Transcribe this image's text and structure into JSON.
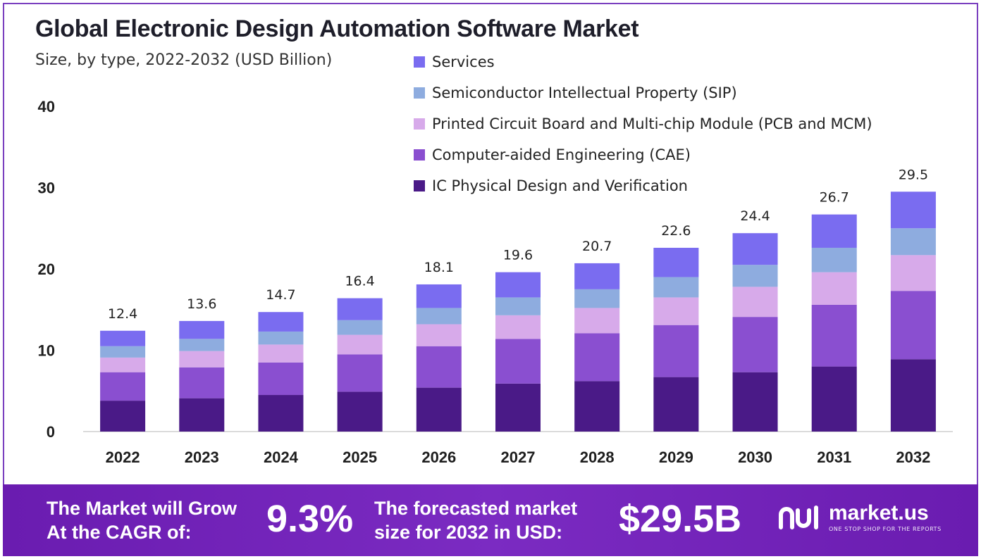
{
  "header": {
    "title": "Global Electronic Design Automation Software Market",
    "subtitle": "Size, by type, 2022-2032 (USD Billion)"
  },
  "chart_data": {
    "type": "bar",
    "stacked": true,
    "categories": [
      "2022",
      "2023",
      "2024",
      "2025",
      "2026",
      "2027",
      "2028",
      "2029",
      "2030",
      "2031",
      "2032"
    ],
    "totals": [
      "12.4",
      "13.6",
      "14.7",
      "16.4",
      "18.1",
      "19.6",
      "20.7",
      "22.6",
      "24.4",
      "26.7",
      "29.5"
    ],
    "series": [
      {
        "name": "IC Physical Design and Verification",
        "color": "#4a1a87",
        "values": [
          3.8,
          4.1,
          4.5,
          4.9,
          5.4,
          5.9,
          6.2,
          6.7,
          7.3,
          8.0,
          8.9
        ]
      },
      {
        "name": "Computer-aided Engineering (CAE)",
        "color": "#8a4fd0",
        "values": [
          3.5,
          3.8,
          4.0,
          4.6,
          5.1,
          5.5,
          5.9,
          6.4,
          6.8,
          7.6,
          8.4
        ]
      },
      {
        "name": "Printed Circuit Board and Multi-chip Module (PCB and MCM)",
        "color": "#d7aaea",
        "values": [
          1.8,
          2.0,
          2.2,
          2.4,
          2.7,
          2.9,
          3.1,
          3.4,
          3.7,
          4.0,
          4.4
        ]
      },
      {
        "name": "Semiconductor Intellectual Property (SIP)",
        "color": "#8eacdf",
        "values": [
          1.4,
          1.5,
          1.6,
          1.8,
          2.0,
          2.2,
          2.3,
          2.5,
          2.7,
          3.0,
          3.3
        ]
      },
      {
        "name": "Services",
        "color": "#7a6cf0",
        "values": [
          1.9,
          2.2,
          2.4,
          2.7,
          2.9,
          3.1,
          3.2,
          3.6,
          3.9,
          4.1,
          4.5
        ]
      }
    ],
    "legend_order": [
      4,
      3,
      2,
      1,
      0
    ],
    "yticks": [
      "0",
      "10",
      "20",
      "30",
      "40"
    ],
    "ylim": [
      0,
      40
    ],
    "grid": false,
    "legend_position": "top-right"
  },
  "footer": {
    "cagr_label_1": "The Market will Grow",
    "cagr_label_2": "At the CAGR of:",
    "cagr_value": "9.3%",
    "forecast_label_1": "The forecasted market",
    "forecast_label_2": "size for 2032 in USD:",
    "forecast_value": "$29.5B",
    "brand_name": "market.us",
    "brand_tagline": "ONE STOP SHOP FOR THE REPORTS"
  }
}
